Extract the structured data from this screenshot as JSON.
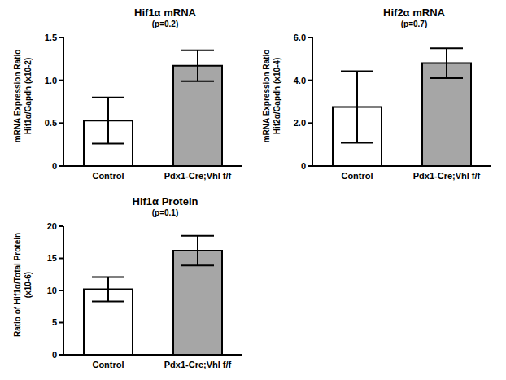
{
  "chart_data": [
    {
      "type": "bar",
      "title": "Hif1α mRNA",
      "subtitle": "(p=0.2)",
      "ylabel": [
        "mRNA Expression Ratio",
        "Hif1α/Gapdh (x10-2)"
      ],
      "categories": [
        "Control",
        "Pdx1-Cre;Vhl f/f"
      ],
      "values": [
        0.53,
        1.17
      ],
      "errors": [
        0.27,
        0.18
      ],
      "colors": [
        "#ffffff",
        "#a6a6a6"
      ],
      "ylim": [
        0,
        1.5
      ],
      "yticks": [
        0,
        0.5,
        {
          "value": 1,
          "label": "1.0"
        },
        1.5
      ]
    },
    {
      "type": "bar",
      "title": "Hif2α mRNA",
      "subtitle": "(p=0.7)",
      "ylabel": [
        "mRNA Expression Ratio",
        "Hif2α/Gapdh (x10-4)"
      ],
      "categories": [
        "Control",
        "Pdx1-Cre;Vhl f/f"
      ],
      "values": [
        2.75,
        4.8
      ],
      "errors": [
        1.67,
        0.7
      ],
      "colors": [
        "#ffffff",
        "#a6a6a6"
      ],
      "ylim": [
        0,
        6
      ],
      "yticks": [
        0,
        {
          "value": 2,
          "label": "2.0"
        },
        {
          "value": 4,
          "label": "4.0"
        },
        {
          "value": 6,
          "label": "6.0"
        }
      ]
    },
    {
      "type": "bar",
      "title": "Hif1α Protein",
      "subtitle": "(p=0.1)",
      "ylabel": [
        "Ratio of Hif1α/Total Protein",
        "(x10-6)"
      ],
      "categories": [
        "Control",
        "Pdx1-Cre;Vhl f/f"
      ],
      "values": [
        10.2,
        16.2
      ],
      "errors": [
        1.9,
        2.3
      ],
      "colors": [
        "#ffffff",
        "#a6a6a6"
      ],
      "ylim": [
        0,
        20
      ],
      "yticks": [
        0,
        5,
        10,
        15,
        20
      ]
    }
  ]
}
